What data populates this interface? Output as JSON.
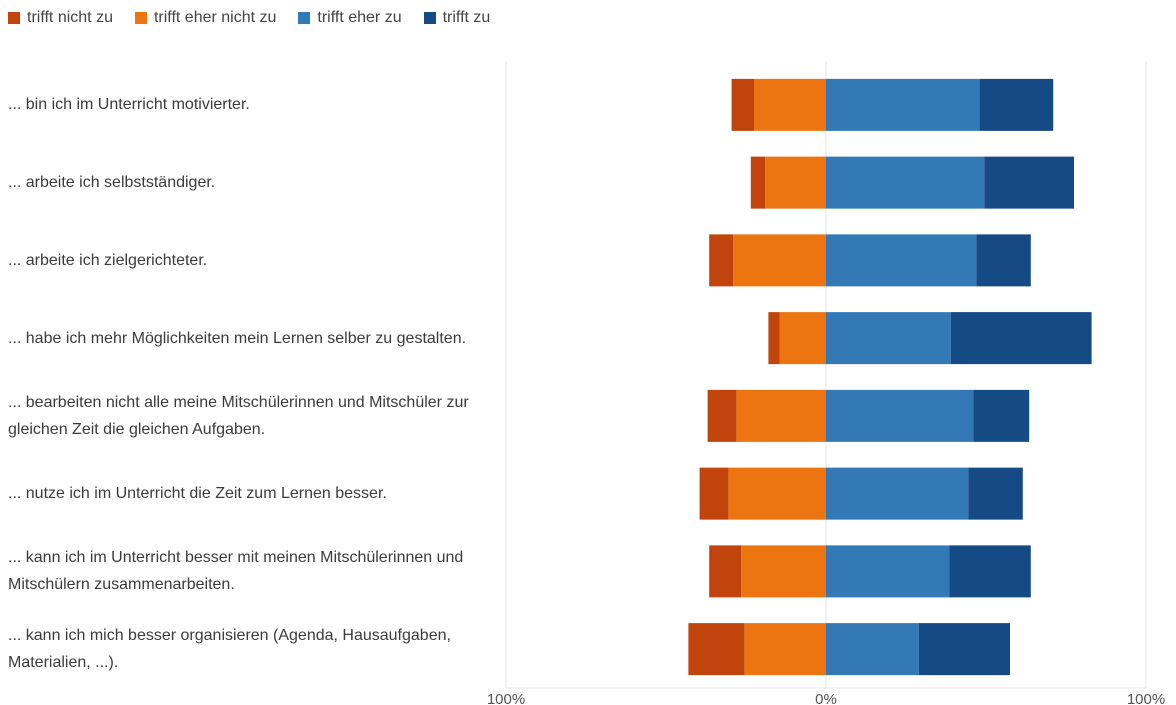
{
  "chart_data": {
    "type": "bar",
    "orientation": "horizontal",
    "stacking": "diverging",
    "legend_position": "top-left",
    "xlim": [
      -100,
      100
    ],
    "x_ticks": [
      {
        "value": -100,
        "label": "100%"
      },
      {
        "value": 0,
        "label": "0%"
      },
      {
        "value": 100,
        "label": "100%"
      }
    ],
    "grid": true,
    "categories": [
      "... bin ich im Unterricht motivierter.",
      "... arbeite ich selbstständiger.",
      "... arbeite ich zielgerichteter.",
      "... habe ich mehr Möglichkeiten mein Lernen selber zu gestalten.",
      "... bearbeiten nicht alle meine Mitschülerinnen und Mitschüler zur gleichen Zeit die gleichen Aufgaben.",
      "... nutze ich im Unterricht die Zeit zum Lernen besser.",
      "... kann ich im Unterricht besser mit meinen Mitschülerinnen und Mitschülern zusammenarbeiten.",
      "... kann ich mich besser organisieren (Agenda, Hausaufgaben, Materialien, ...)."
    ],
    "series": [
      {
        "name": "trifft nicht zu",
        "side": "negative",
        "color": "#c0440c",
        "values": [
          7,
          4.5,
          7.5,
          3.5,
          9,
          9,
          10,
          17.5
        ]
      },
      {
        "name": "trifft eher nicht zu",
        "side": "negative",
        "color": "#ec7511",
        "values": [
          22.5,
          19,
          29,
          14.5,
          28,
          30.5,
          26.5,
          25.5
        ]
      },
      {
        "name": "trifft eher zu",
        "side": "positive",
        "color": "#3379b5",
        "values": [
          48,
          49.5,
          47,
          39,
          46,
          44.5,
          38.5,
          29
        ]
      },
      {
        "name": "trifft zu",
        "side": "positive",
        "color": "#164a85",
        "values": [
          23,
          28,
          17,
          44,
          17.5,
          17,
          25.5,
          28.5
        ]
      }
    ]
  }
}
